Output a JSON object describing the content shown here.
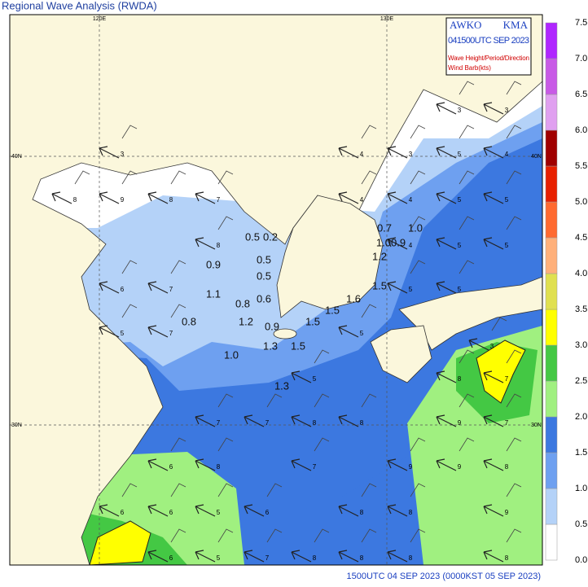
{
  "header": {
    "title": "Regional Wave Analysis (RWDA)"
  },
  "info_box": {
    "agency_left": "AWKO",
    "agency_right": "KMA",
    "time": "041500UTC SEP 2023",
    "legend_wave": "Wave Height/Period/Direction",
    "legend_wind": "Wind Barb(kts)"
  },
  "grid_labels": {
    "lon": [
      "120E",
      "130E"
    ],
    "lat": [
      "40N",
      "30N"
    ]
  },
  "colorbar": {
    "ticks": [
      {
        "value": 0,
        "label": "0.0"
      },
      {
        "value": 0.5,
        "label": "0.5"
      },
      {
        "value": 1,
        "label": "1.0"
      },
      {
        "value": 1.5,
        "label": "1.5"
      },
      {
        "value": 2,
        "label": "2.0"
      },
      {
        "value": 2.5,
        "label": "2.5"
      },
      {
        "value": 3,
        "label": "3.0"
      },
      {
        "value": 3.5,
        "label": "3.5"
      },
      {
        "value": 4,
        "label": "4.0"
      },
      {
        "value": 4.5,
        "label": "4.5"
      },
      {
        "value": 5,
        "label": "5.0"
      },
      {
        "value": 5.5,
        "label": "5.5"
      },
      {
        "value": 6,
        "label": "6.0"
      },
      {
        "value": 6.5,
        "label": "6.5"
      },
      {
        "value": 7,
        "label": "7.0"
      },
      {
        "value": 7.5,
        "label": "7.5"
      }
    ],
    "colors": [
      "#ffffff",
      "#b4d2f8",
      "#6ea0f0",
      "#3c78e0",
      "#a0f080",
      "#44c844",
      "#ffff00",
      "#e0e050",
      "#ffb07a",
      "#ff6a30",
      "#e82000",
      "#a00000",
      "#e0a0f0",
      "#c85ae6",
      "#b026ff"
    ]
  },
  "observations": [
    "0.7",
    "1.0",
    "1.00.9",
    "1.2",
    "1.5",
    "1.6",
    "1.5",
    "1.5",
    "1.5",
    "1.3",
    "0.9",
    "1.2",
    "0.8",
    "0.8",
    "0.6",
    "1.1",
    "0.9",
    "0.5",
    "0.5",
    "0.5",
    "0.2",
    "1.0",
    "1.3"
  ],
  "periods": [
    "3",
    "8",
    "9",
    "8",
    "7",
    "8",
    "6",
    "7",
    "5",
    "7",
    "4",
    "4",
    "4",
    "3",
    "5",
    "4",
    "3",
    "3",
    "5",
    "5",
    "4",
    "5",
    "5",
    "5",
    "5",
    "5",
    "5",
    "8",
    "7",
    "7",
    "7",
    "8",
    "8",
    "9",
    "7",
    "6",
    "8",
    "7",
    "9",
    "9",
    "8",
    "6",
    "6",
    "5",
    "6",
    "8",
    "8",
    "9",
    "6",
    "5",
    "7",
    "8",
    "8",
    "8",
    "8",
    "3"
  ],
  "footer": {
    "time": "1500UTC 04 SEP 2023 (0000KST 05 SEP 2023)"
  }
}
